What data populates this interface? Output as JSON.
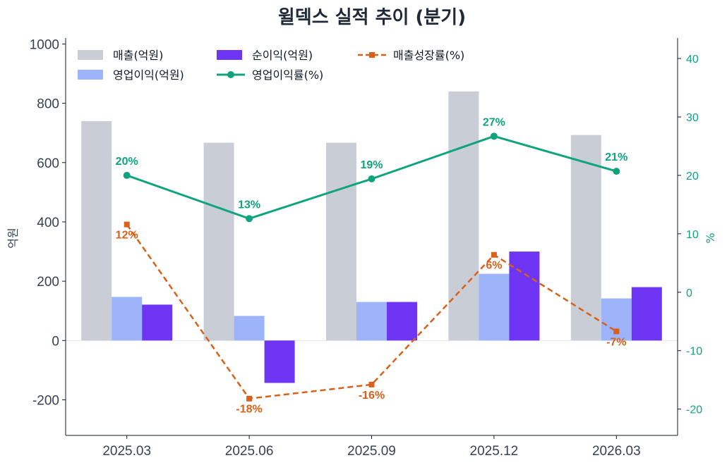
{
  "chart_data": {
    "type": "bar",
    "title": "윌덱스 실적 추이 (분기)",
    "categories": [
      "2025.03",
      "2025.06",
      "2025.09",
      "2025.12",
      "2026.03"
    ],
    "ylabel": "억원",
    "y2label": "%",
    "ylim": [
      -320,
      1020
    ],
    "y2lim": [
      -24.5,
      43.5
    ],
    "yticks": [
      -200,
      0,
      200,
      400,
      600,
      800,
      1000
    ],
    "y2ticks": [
      -20,
      -10,
      0,
      10,
      20,
      30,
      40
    ],
    "grid": false,
    "legend_position": "top-left",
    "colors": {
      "revenue": "#c9ced6",
      "op_income": "#9db4fb",
      "net_income": "#6e35f5",
      "op_margin": "#10a37f",
      "growth": "#d9601a"
    },
    "series": [
      {
        "name": "매출(억원)",
        "type": "bar",
        "axis": "left",
        "values": [
          740,
          667,
          667,
          840,
          693
        ]
      },
      {
        "name": "영업이익(억원)",
        "type": "bar",
        "axis": "left",
        "values": [
          147,
          83,
          130,
          225,
          142
        ]
      },
      {
        "name": "순이익(억원)",
        "type": "bar",
        "axis": "left",
        "values": [
          121,
          -143,
          130,
          300,
          180
        ]
      },
      {
        "name": "영업이익률(%)",
        "type": "line",
        "axis": "right",
        "values": [
          20,
          12.6,
          19.4,
          26.7,
          20.7
        ],
        "labels": [
          "20%",
          "13%",
          "19%",
          "27%",
          "21%"
        ]
      },
      {
        "name": "매출성장률(%)",
        "type": "line",
        "style": "dashed",
        "axis": "right",
        "values": [
          11.6,
          -18.2,
          -15.8,
          6.4,
          -6.7
        ],
        "labels": [
          "12%",
          "-18%",
          "-16%",
          "6%",
          "-7%"
        ]
      }
    ]
  }
}
